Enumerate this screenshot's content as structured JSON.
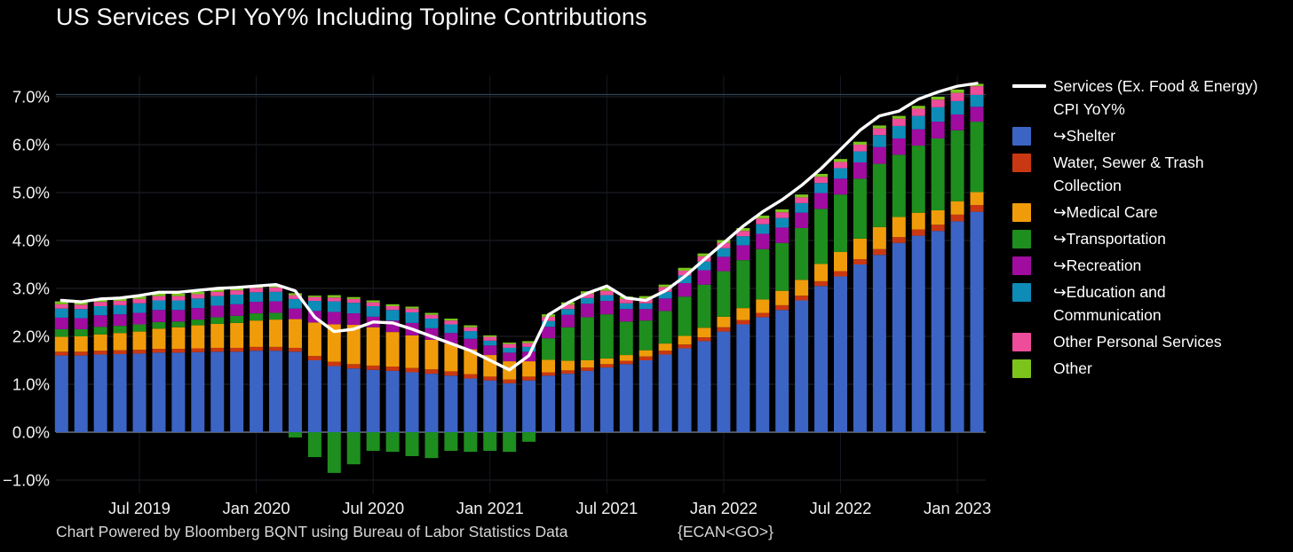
{
  "title": "US Services CPI YoY% Including Topline Contributions",
  "footer": {
    "credit": "Chart Powered by Bloomberg BQNT using Bureau of Labor Statistics Data",
    "command": "{ECAN<GO>}"
  },
  "colors": {
    "background": "#000000",
    "title_text": "#fafafa",
    "axis_text": "#f2f2f2",
    "footer_text": "#d6d6d6",
    "grid": "#20252d",
    "zero_axis": "#50565e",
    "top_rule": "#2e4257",
    "topline": "#ffffff",
    "shelter": "#3c64c4",
    "water": "#c93812",
    "medical": "#f09c0a",
    "transportation": "#1e8e1e",
    "recreation": "#a00ca0",
    "education": "#0e8cb8",
    "other_personal": "#ee4d9b",
    "other": "#7cc41c"
  },
  "legend": {
    "items": [
      {
        "swatch": "line",
        "color": "#ffffff",
        "label": "Services (Ex. Food & Energy)\nCPI YoY%"
      },
      {
        "swatch": "square",
        "color": "#3c64c4",
        "label": "↪Shelter"
      },
      {
        "swatch": "square",
        "color": "#c93812",
        "label": "Water, Sewer & Trash\nCollection"
      },
      {
        "swatch": "square",
        "color": "#f09c0a",
        "label": "↪Medical Care"
      },
      {
        "swatch": "square",
        "color": "#1e8e1e",
        "label": "↪Transportation"
      },
      {
        "swatch": "square",
        "color": "#a00ca0",
        "label": "↪Recreation"
      },
      {
        "swatch": "square",
        "color": "#0e8cb8",
        "label": "↪Education and\nCommunication"
      },
      {
        "swatch": "square",
        "color": "#ee4d9b",
        "label": "Other Personal Services"
      },
      {
        "swatch": "square",
        "color": "#7cc41c",
        "label": "Other"
      }
    ]
  },
  "axes": {
    "y_ticks": [
      {
        "label": "7.0%",
        "value": 7
      },
      {
        "label": "6.0%",
        "value": 6
      },
      {
        "label": "5.0%",
        "value": 5
      },
      {
        "label": "4.0%",
        "value": 4
      },
      {
        "label": "3.0%",
        "value": 3
      },
      {
        "label": "2.0%",
        "value": 2
      },
      {
        "label": "1.0%",
        "value": 1
      },
      {
        "label": "0.0%",
        "value": 0
      },
      {
        "label": "−1.0%",
        "value": -1
      }
    ],
    "x_ticks": [
      {
        "label": "Jul 2019",
        "index": 4
      },
      {
        "label": "Jan 2020",
        "index": 10
      },
      {
        "label": "Jul 2020",
        "index": 16
      },
      {
        "label": "Jan 2021",
        "index": 22
      },
      {
        "label": "Jul 2021",
        "index": 28
      },
      {
        "label": "Jan 2022",
        "index": 34
      },
      {
        "label": "Jul 2022",
        "index": 40
      },
      {
        "label": "Jan 2023",
        "index": 46
      }
    ]
  },
  "chart_data": {
    "type": "bar",
    "stacked": true,
    "grid": true,
    "legend_position": "right",
    "y_unit": "percent YoY contribution",
    "ylim": [
      -1.3,
      7.45
    ],
    "title": "US Services CPI YoY% Including Topline Contributions",
    "xlabel": "",
    "ylabel": "",
    "categories": [
      "Mar 2019",
      "Apr 2019",
      "May 2019",
      "Jun 2019",
      "Jul 2019",
      "Aug 2019",
      "Sep 2019",
      "Oct 2019",
      "Nov 2019",
      "Dec 2019",
      "Jan 2020",
      "Feb 2020",
      "Mar 2020",
      "Apr 2020",
      "May 2020",
      "Jun 2020",
      "Jul 2020",
      "Aug 2020",
      "Sep 2020",
      "Oct 2020",
      "Nov 2020",
      "Dec 2020",
      "Jan 2021",
      "Feb 2021",
      "Mar 2021",
      "Apr 2021",
      "May 2021",
      "Jun 2021",
      "Jul 2021",
      "Aug 2021",
      "Sep 2021",
      "Oct 2021",
      "Nov 2021",
      "Dec 2021",
      "Jan 2022",
      "Feb 2022",
      "Mar 2022",
      "Apr 2022",
      "May 2022",
      "Jun 2022",
      "Jul 2022",
      "Aug 2022",
      "Sep 2022",
      "Oct 2022",
      "Nov 2022",
      "Dec 2022",
      "Jan 2023",
      "Feb 2023"
    ],
    "series": [
      {
        "name": "↪Shelter",
        "color": "#3c64c4",
        "values": [
          1.6,
          1.6,
          1.62,
          1.63,
          1.64,
          1.66,
          1.66,
          1.67,
          1.68,
          1.68,
          1.7,
          1.7,
          1.68,
          1.5,
          1.38,
          1.33,
          1.3,
          1.28,
          1.25,
          1.22,
          1.18,
          1.12,
          1.08,
          1.02,
          1.08,
          1.18,
          1.22,
          1.28,
          1.35,
          1.42,
          1.5,
          1.62,
          1.75,
          1.9,
          2.1,
          2.25,
          2.4,
          2.55,
          2.75,
          3.05,
          3.25,
          3.5,
          3.7,
          3.95,
          4.1,
          4.2,
          4.4,
          4.6
        ]
      },
      {
        "name": "Water, Sewer & Trash Collection",
        "color": "#c93812",
        "values": [
          0.08,
          0.08,
          0.08,
          0.08,
          0.08,
          0.08,
          0.08,
          0.08,
          0.08,
          0.08,
          0.08,
          0.08,
          0.08,
          0.09,
          0.09,
          0.09,
          0.09,
          0.09,
          0.09,
          0.09,
          0.09,
          0.09,
          0.08,
          0.08,
          0.08,
          0.07,
          0.07,
          0.07,
          0.07,
          0.07,
          0.08,
          0.08,
          0.08,
          0.08,
          0.09,
          0.09,
          0.09,
          0.1,
          0.1,
          0.1,
          0.11,
          0.11,
          0.12,
          0.12,
          0.13,
          0.13,
          0.14,
          0.14
        ]
      },
      {
        "name": "↪Medical Care",
        "color": "#f09c0a",
        "values": [
          0.31,
          0.32,
          0.34,
          0.36,
          0.38,
          0.42,
          0.45,
          0.48,
          0.5,
          0.52,
          0.55,
          0.57,
          0.6,
          0.7,
          0.78,
          0.82,
          0.8,
          0.72,
          0.68,
          0.62,
          0.58,
          0.52,
          0.45,
          0.38,
          0.32,
          0.26,
          0.2,
          0.15,
          0.12,
          0.12,
          0.13,
          0.15,
          0.18,
          0.2,
          0.22,
          0.25,
          0.28,
          0.3,
          0.33,
          0.36,
          0.4,
          0.43,
          0.46,
          0.42,
          0.35,
          0.3,
          0.28,
          0.27
        ]
      },
      {
        "name": "↪Transportation",
        "color": "#1e8e1e",
        "values": [
          0.16,
          0.15,
          0.16,
          0.15,
          0.15,
          0.14,
          0.12,
          0.12,
          0.14,
          0.15,
          0.15,
          0.14,
          -0.11,
          -0.52,
          -0.85,
          -0.67,
          -0.39,
          -0.41,
          -0.5,
          -0.54,
          -0.39,
          -0.41,
          -0.39,
          -0.41,
          -0.2,
          0.45,
          0.7,
          0.9,
          0.92,
          0.7,
          0.62,
          0.68,
          0.82,
          0.9,
          0.95,
          1.0,
          1.05,
          1.0,
          1.08,
          1.15,
          1.2,
          1.25,
          1.32,
          1.3,
          1.4,
          1.5,
          1.48,
          1.47
        ]
      },
      {
        "name": "↪Recreation",
        "color": "#a00ca0",
        "values": [
          0.24,
          0.23,
          0.24,
          0.24,
          0.24,
          0.25,
          0.24,
          0.24,
          0.24,
          0.24,
          0.24,
          0.24,
          0.22,
          0.24,
          0.26,
          0.24,
          0.22,
          0.24,
          0.26,
          0.24,
          0.22,
          0.22,
          0.2,
          0.18,
          0.2,
          0.24,
          0.26,
          0.28,
          0.28,
          0.26,
          0.24,
          0.26,
          0.28,
          0.3,
          0.3,
          0.31,
          0.32,
          0.32,
          0.32,
          0.33,
          0.33,
          0.34,
          0.35,
          0.34,
          0.34,
          0.35,
          0.33,
          0.31
        ]
      },
      {
        "name": "↪Education and Communication",
        "color": "#0e8cb8",
        "values": [
          0.19,
          0.19,
          0.19,
          0.19,
          0.2,
          0.2,
          0.2,
          0.2,
          0.2,
          0.2,
          0.2,
          0.2,
          0.2,
          0.21,
          0.22,
          0.22,
          0.22,
          0.22,
          0.22,
          0.2,
          0.18,
          0.16,
          0.1,
          0.1,
          0.1,
          0.12,
          0.12,
          0.12,
          0.12,
          0.12,
          0.12,
          0.14,
          0.16,
          0.18,
          0.18,
          0.19,
          0.2,
          0.2,
          0.2,
          0.21,
          0.22,
          0.23,
          0.25,
          0.26,
          0.28,
          0.3,
          0.28,
          0.25
        ]
      },
      {
        "name": "Other Personal Services",
        "color": "#ee4d9b",
        "values": [
          0.09,
          0.09,
          0.09,
          0.09,
          0.09,
          0.09,
          0.09,
          0.09,
          0.09,
          0.09,
          0.09,
          0.09,
          0.08,
          0.08,
          0.08,
          0.08,
          0.08,
          0.08,
          0.08,
          0.08,
          0.08,
          0.08,
          0.08,
          0.08,
          0.08,
          0.09,
          0.09,
          0.09,
          0.09,
          0.09,
          0.1,
          0.1,
          0.1,
          0.11,
          0.11,
          0.11,
          0.12,
          0.12,
          0.12,
          0.13,
          0.13,
          0.14,
          0.14,
          0.15,
          0.15,
          0.16,
          0.17,
          0.18
        ]
      },
      {
        "name": "Other",
        "color": "#7cc41c",
        "values": [
          0.06,
          0.05,
          0.05,
          0.06,
          0.05,
          0.06,
          0.05,
          0.05,
          0.05,
          0.05,
          0.05,
          0.05,
          0.04,
          0.03,
          0.05,
          0.04,
          0.04,
          0.04,
          0.04,
          0.04,
          0.04,
          0.04,
          0.03,
          0.03,
          0.04,
          0.05,
          0.05,
          0.05,
          0.06,
          0.05,
          0.05,
          0.05,
          0.06,
          0.06,
          0.06,
          0.06,
          0.06,
          0.06,
          0.06,
          0.06,
          0.06,
          0.06,
          0.06,
          0.06,
          0.06,
          0.06,
          0.07,
          0.05
        ]
      }
    ],
    "line_series": {
      "name": "Services (Ex. Food & Energy) CPI YoY%",
      "color": "#ffffff",
      "values": [
        2.75,
        2.72,
        2.78,
        2.8,
        2.85,
        2.92,
        2.92,
        2.96,
        3.0,
        3.02,
        3.05,
        3.08,
        2.95,
        2.4,
        2.1,
        2.15,
        2.3,
        2.28,
        2.15,
        2.0,
        1.85,
        1.7,
        1.5,
        1.3,
        1.6,
        2.45,
        2.7,
        2.9,
        3.05,
        2.8,
        2.75,
        2.95,
        3.25,
        3.6,
        3.95,
        4.3,
        4.6,
        4.85,
        5.15,
        5.5,
        5.9,
        6.3,
        6.6,
        6.7,
        6.95,
        7.1,
        7.22,
        7.28
      ]
    }
  }
}
